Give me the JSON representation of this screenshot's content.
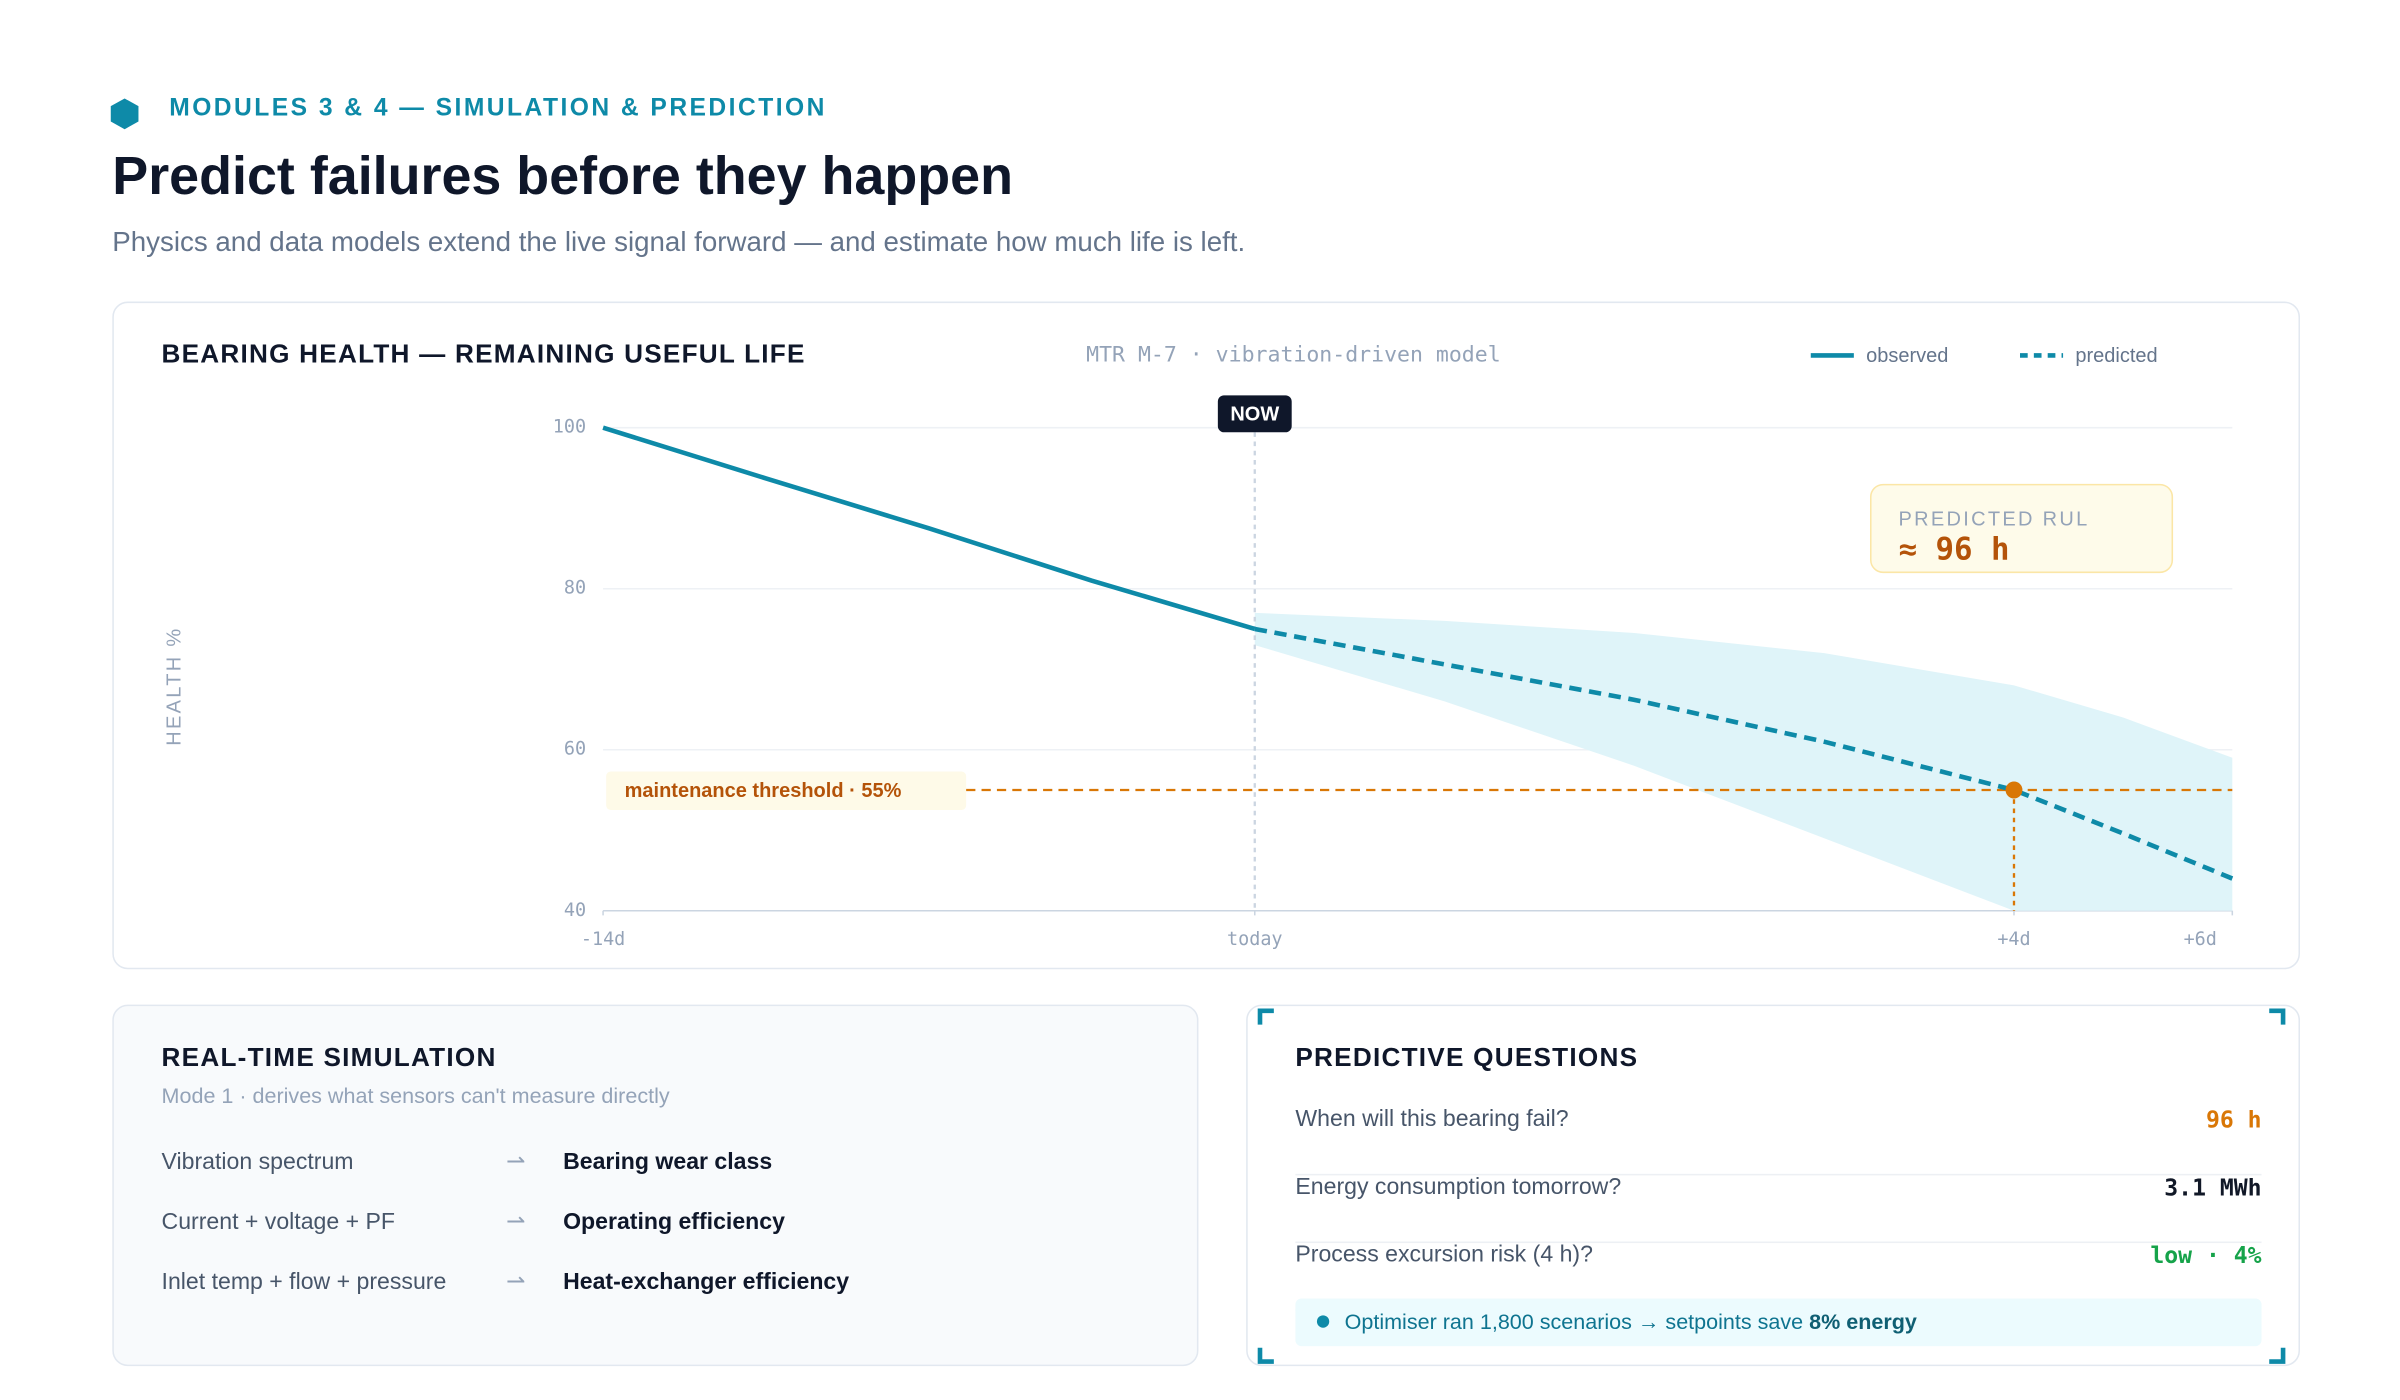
{
  "header": {
    "eyebrow": "MODULES 3 & 4 — SIMULATION & PREDICTION",
    "title": "Predict failures before they happen",
    "subtitle": "Physics and data models extend the live signal forward — and estimate how much life is left."
  },
  "chart_data": {
    "type": "line",
    "title": "BEARING HEALTH — REMAINING USEFUL LIFE",
    "subtitle": "MTR M-7 · vibration-driven model",
    "y_label": "HEALTH %",
    "ylim": [
      40,
      100
    ],
    "yticks": [
      40,
      60,
      80,
      100
    ],
    "xlim": [
      -14,
      6
    ],
    "xticks": [
      {
        "value": -14,
        "label": "-14d"
      },
      {
        "value": 0,
        "label": "today"
      },
      {
        "value": 4,
        "label": "+4d"
      },
      {
        "value": 6,
        "label": "+6d"
      }
    ],
    "series": [
      {
        "name": "observed",
        "color": "#0e8aa8",
        "style": "solid",
        "x": [
          -14,
          -10.5,
          -7,
          -3.5,
          0
        ],
        "values": [
          100,
          93.7,
          87.5,
          81,
          75
        ]
      },
      {
        "name": "predicted",
        "color": "#0e8aa8",
        "style": "dashed",
        "x": [
          0,
          1,
          2,
          3,
          4,
          5,
          6
        ],
        "values": [
          75,
          70.6,
          66.2,
          61,
          55,
          49.6,
          44
        ]
      }
    ],
    "band": {
      "color": "#dff4f9",
      "x": [
        0,
        1,
        2,
        3,
        4,
        5,
        6
      ],
      "upper": [
        77,
        76,
        74.5,
        72,
        68,
        64,
        59
      ],
      "lower": [
        73,
        66,
        58,
        49,
        40,
        40,
        40
      ]
    },
    "now": {
      "x": 0,
      "label": "NOW"
    },
    "threshold": {
      "value": 55,
      "label": "maintenance threshold · 55%",
      "color": "#d97706"
    },
    "rul": {
      "label": "PREDICTED RUL",
      "value_label": "≈ 96 h"
    }
  },
  "simulation": {
    "title": "REAL-TIME SIMULATION",
    "subtitle": "Mode 1 · derives what sensors can't measure directly",
    "rows": [
      [
        "Vibration spectrum",
        "Bearing wear class"
      ],
      [
        "Current + voltage + PF",
        "Operating efficiency"
      ],
      [
        "Inlet temp + flow + pressure",
        "Heat-exchanger efficiency"
      ]
    ]
  },
  "questions": {
    "title": "PREDICTIVE QUESTIONS",
    "rows": [
      {
        "q": "When will this bearing fail?",
        "a": "96 h",
        "color": "#d97706"
      },
      {
        "q": "Energy consumption tomorrow?",
        "a": "3.1 MWh",
        "color": "#111827"
      },
      {
        "q": "Process excursion risk (4 h)?",
        "a": "low · 4%",
        "color": "#16a34a"
      }
    ],
    "note": "Optimiser ran 1,800 scenarios → setpoints save",
    "note_strong": "8% energy"
  }
}
